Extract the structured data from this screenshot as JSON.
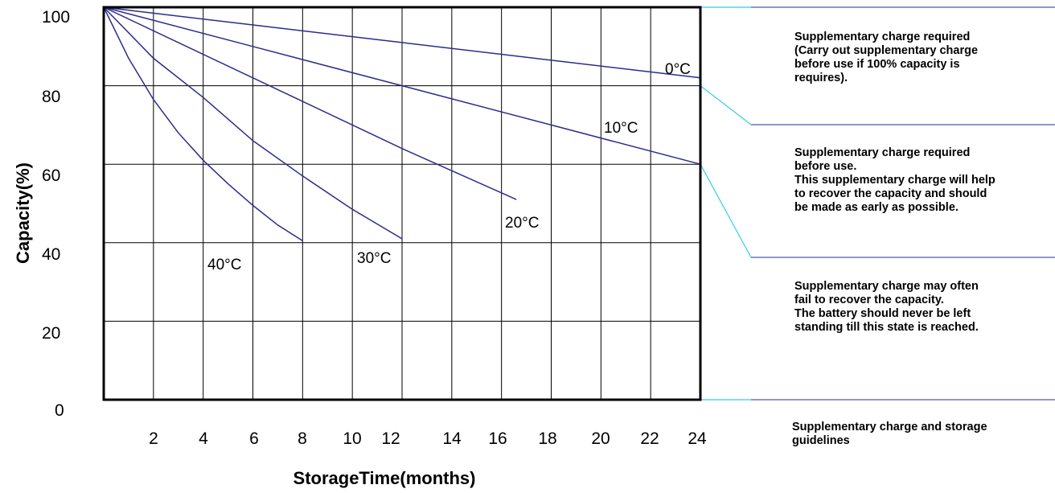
{
  "chart_data": {
    "type": "line",
    "xlabel": "StorageTime(months)",
    "ylabel": "Capacity(%)",
    "xlim": [
      0,
      24
    ],
    "ylim": [
      0,
      100
    ],
    "x_ticks": [
      "2",
      "4",
      "6",
      "8",
      "10",
      "12",
      "14",
      "16",
      "18",
      "20",
      "22",
      "24"
    ],
    "y_ticks": [
      "0",
      "20",
      "40",
      "60",
      "80",
      "100"
    ],
    "grid": true,
    "series": [
      {
        "name": "0°C",
        "points": [
          [
            0,
            100
          ],
          [
            6,
            95.5
          ],
          [
            12,
            91
          ],
          [
            18,
            86.5
          ],
          [
            24,
            82
          ]
        ]
      },
      {
        "name": "10°C",
        "points": [
          [
            0,
            100
          ],
          [
            6,
            90
          ],
          [
            12,
            80
          ],
          [
            18,
            70
          ],
          [
            24,
            60
          ]
        ]
      },
      {
        "name": "20°C",
        "points": [
          [
            0,
            100
          ],
          [
            4,
            88
          ],
          [
            8,
            76
          ],
          [
            12,
            64
          ],
          [
            16.6,
            51
          ]
        ]
      },
      {
        "name": "30°C",
        "points": [
          [
            0,
            100
          ],
          [
            2,
            87
          ],
          [
            4,
            77
          ],
          [
            6,
            66
          ],
          [
            8,
            57
          ],
          [
            10,
            48.5
          ],
          [
            12,
            41
          ]
        ]
      },
      {
        "name": "40°C",
        "points": [
          [
            0,
            100
          ],
          [
            1,
            87
          ],
          [
            2,
            76.5
          ],
          [
            3,
            68
          ],
          [
            4,
            61
          ],
          [
            5,
            55
          ],
          [
            6,
            49.5
          ],
          [
            7,
            44.5
          ],
          [
            8,
            40.5
          ]
        ]
      }
    ]
  },
  "colors": {
    "curve": "#2b2b8c",
    "connector": "#33ccee",
    "guide": "#5555aa",
    "axis": "#000000"
  },
  "notes": [
    {
      "lines": [
        "Supplementary charge required",
        "(Carry out supplementary charge",
        "before use if 100% capacity is",
        "requires)."
      ]
    },
    {
      "lines": [
        "Supplementary charge required",
        "before use.",
        "This supplementary charge will help",
        "to recover the capacity and should",
        "be made as early as possible."
      ]
    },
    {
      "lines": [
        "Supplementary charge may often",
        "fail to recover the capacity.",
        "The battery should never be left",
        "standing till this state is reached."
      ]
    },
    {
      "lines": [
        "Supplementary charge and storage",
        "guidelines"
      ]
    }
  ]
}
